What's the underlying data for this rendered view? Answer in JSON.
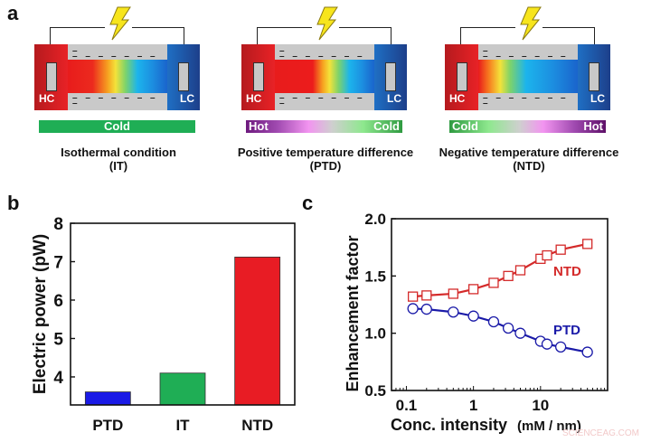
{
  "panel_a": {
    "label": "a",
    "diagrams": [
      {
        "hc": "HC",
        "lc": "LC",
        "bar_left": "",
        "bar_right": "",
        "bar_center": "Cold",
        "title": "Isothermal condition",
        "abbr": "(IT)",
        "channel_gradient": "linear-gradient(90deg,#e81c1c 0%,#ec2a1e 25%,#f6a020 40%,#f4e23a 48%,#7ed36a 58%,#1cb4ec 70%,#1c8ee0 85%,#1a64cc 100%)",
        "bar_gradient": "#1fae55"
      },
      {
        "hc": "HC",
        "lc": "LC",
        "bar_left": "Hot",
        "bar_right": "Cold",
        "bar_center": "",
        "title": "Positive temperature difference",
        "abbr": "(PTD)",
        "channel_gradient": "linear-gradient(90deg,#e81c1c 0%,#ec1c1c 38%,#f6a020 48%,#f4e23a 55%,#7ed36a 64%,#1cb4ec 75%,#1c8ee0 88%,#1a64cc 100%)",
        "bar_gradient": "linear-gradient(90deg,#6e1a7e 0%,#a04ab0 20%,#f294f0 40%,#cfcfcf 55%,#8ee88e 75%,#2e9a40 100%)"
      },
      {
        "hc": "HC",
        "lc": "LC",
        "bar_left": "Cold",
        "bar_right": "Hot",
        "bar_center": "",
        "title": "Negative temperature difference",
        "abbr": "(NTD)",
        "channel_gradient": "linear-gradient(90deg,#e81c1c 0%,#f6761e 10%,#f4e23a 22%,#7ed36a 32%,#1cb4ec 48%,#1c8ee0 75%,#1a64cc 100%)",
        "bar_gradient": "linear-gradient(90deg,#2e9a40 0%,#8ee88e 25%,#cfcfcf 45%,#f294f0 60%,#a04ab0 80%,#5e1068 100%)"
      }
    ]
  },
  "chart_data": [
    {
      "panel": "b",
      "type": "bar",
      "categories": [
        "PTD",
        "IT",
        "NTD"
      ],
      "values": [
        3.61,
        4.1,
        7.12
      ],
      "colors": [
        "#1a1ae6",
        "#1fae55",
        "#e81c24"
      ],
      "ylabel": "Electric power (pW)",
      "xlabel": "",
      "ylim": [
        3.27,
        8
      ],
      "yticks": [
        "4",
        "5",
        "6",
        "7",
        "8"
      ],
      "grid": false
    },
    {
      "panel": "c",
      "type": "line",
      "xscale": "log",
      "xlim": [
        0.06,
        100
      ],
      "ylim": [
        0.5,
        2.0
      ],
      "xticks": [
        "0.1",
        "1",
        "10"
      ],
      "yticks": [
        "0.5",
        "1.0",
        "1.5",
        "2.0"
      ],
      "xlabel": "Conc. intensity",
      "xlabel_unit": "(mM / nm)",
      "ylabel": "Enhancement factor",
      "grid": false,
      "x": [
        0.125,
        0.2,
        0.5,
        1,
        2,
        3.3,
        5,
        10,
        12.5,
        20,
        50
      ],
      "series": [
        {
          "name": "NTD",
          "color": "#d42a2a",
          "marker": "square",
          "values": [
            1.32,
            1.33,
            1.345,
            1.385,
            1.44,
            1.5,
            1.55,
            1.65,
            1.68,
            1.73,
            1.78
          ]
        },
        {
          "name": "PTD",
          "color": "#1a1aa8",
          "marker": "circle",
          "values": [
            1.215,
            1.21,
            1.185,
            1.15,
            1.1,
            1.045,
            1.0,
            0.93,
            0.905,
            0.88,
            0.835
          ]
        }
      ]
    }
  ],
  "watermark": "SCIENCEAG.COM"
}
